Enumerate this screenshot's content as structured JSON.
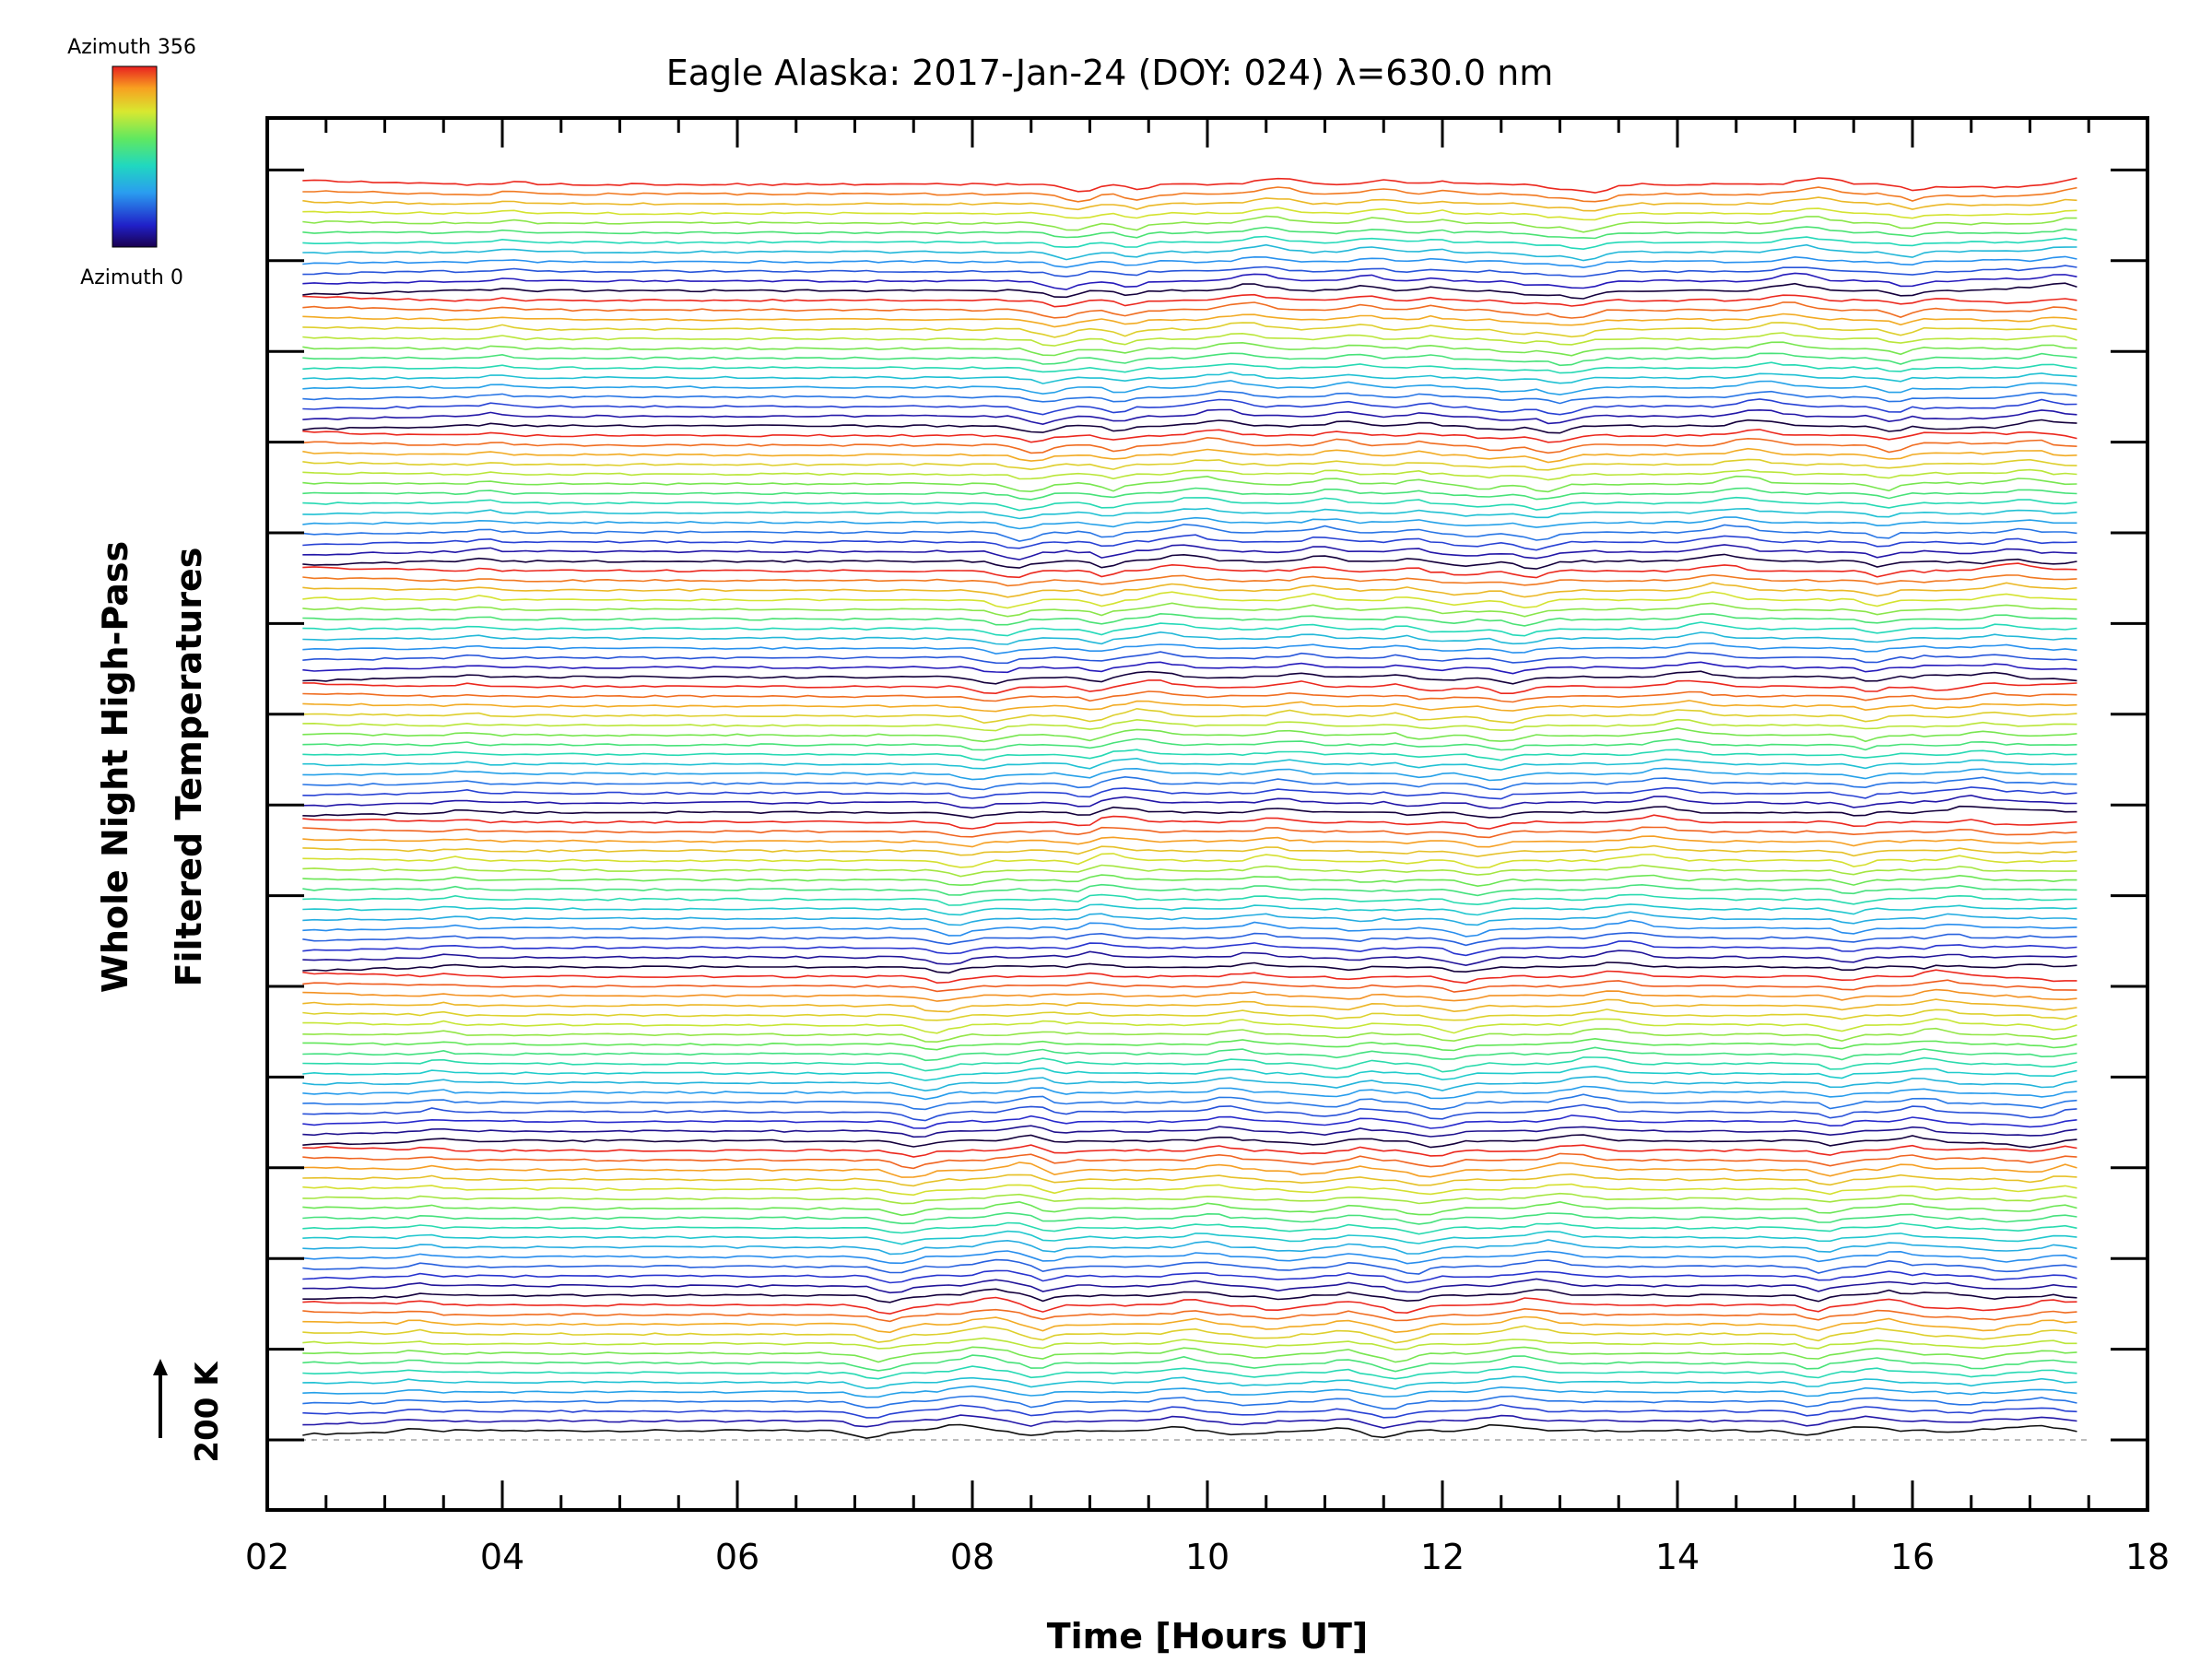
{
  "chart_data": {
    "type": "line",
    "title": "Eagle Alaska: 2017-Jan-24 (DOY: 024) λ=630.0 nm",
    "xlabel": "Time [Hours UT]",
    "ylabel_line1": "Whole Night High-Pass",
    "ylabel_line2": "Filtered Temperatures",
    "xlim": [
      2,
      18
    ],
    "x_ticks": [
      "02",
      "04",
      "06",
      "08",
      "10",
      "12",
      "14",
      "16",
      "18"
    ],
    "scale_bar_label": "200 K",
    "colorbar": {
      "top_label": "Azimuth 356",
      "bottom_label": "Azimuth 0",
      "colormap": "rainbow"
    },
    "grid": false,
    "t_start": 2.3,
    "t_end": 17.45,
    "n_traces": 130,
    "trace_colors_note": "colored by azimuth, 0 = dark blue/black, 356 = red",
    "waveform_features_hours": [
      3.2,
      7.1,
      7.9,
      8.5,
      9.7,
      10.3,
      11.1,
      11.5,
      12.5,
      15.1,
      15.6,
      16.4,
      17.1
    ]
  }
}
